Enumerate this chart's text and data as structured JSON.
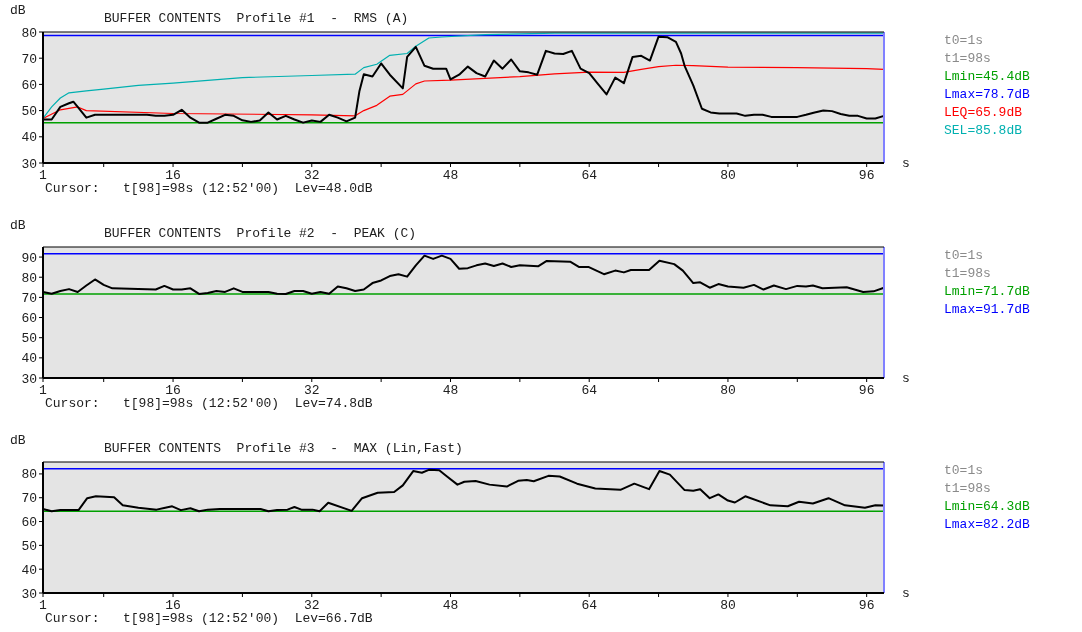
{
  "chart_data": [
    {
      "type": "line",
      "title": "BUFFER CONTENTS  Profile #1  -  RMS (A)",
      "xlabel": "s",
      "ylabel": "dB",
      "xlim": [
        1,
        98
      ],
      "ylim": [
        30,
        80
      ],
      "xticks": [
        1,
        {
          "value": 8,
          "label": null
        },
        16,
        {
          "value": 24,
          "label": null
        },
        32,
        {
          "value": 40,
          "label": null
        },
        48,
        {
          "value": 56,
          "label": null
        },
        64,
        {
          "value": 72,
          "label": null
        },
        80,
        {
          "value": 88,
          "label": null
        },
        96
      ],
      "yticks": [
        30,
        40,
        50,
        60,
        70,
        80
      ],
      "grid": false,
      "legend": "right",
      "marker": "none",
      "line_style": "solid",
      "series": [
        {
          "color": "#ff0000",
          "name": "LEQ=65.9dB",
          "x": [
            1,
            3,
            5,
            6,
            16,
            32,
            37,
            38,
            39.5,
            41,
            42.5,
            44,
            45,
            48,
            56,
            60,
            64,
            68,
            70,
            72,
            74,
            76,
            80,
            88,
            96,
            98
          ],
          "values": [
            47,
            50.3,
            51.4,
            50,
            48.9,
            48.4,
            48,
            50,
            52,
            55.5,
            56.2,
            60.2,
            61.3,
            61.6,
            63,
            64,
            64.7,
            64.6,
            65.7,
            66.8,
            67.3,
            67.2,
            66.6,
            66.4,
            66,
            65.7
          ]
        },
        {
          "color": "#00b0b0",
          "name": "SEL=85.8dB",
          "x": [
            1,
            2,
            3,
            4,
            6,
            8,
            12,
            16,
            24,
            32,
            37,
            38,
            39.5,
            41,
            43,
            44,
            45.5,
            47,
            52,
            56,
            60,
            98
          ],
          "values": [
            47,
            51.4,
            54.8,
            56.8,
            57.5,
            58.2,
            59.6,
            60.5,
            62.6,
            63.4,
            63.9,
            66.4,
            67.7,
            71.1,
            71.8,
            74.6,
            77.7,
            78.1,
            79,
            79.3,
            79.6,
            79.6
          ]
        },
        {
          "color": "#000000",
          "x": [
            1,
            2,
            3,
            4,
            4.5,
            5,
            6,
            7,
            13,
            14,
            15,
            16,
            17,
            18,
            19,
            20,
            21,
            22,
            23,
            24,
            25,
            26,
            27,
            28,
            29,
            30,
            31,
            32,
            33,
            34,
            35,
            36,
            37,
            37.5,
            38,
            39,
            40,
            41,
            42.5,
            43,
            44,
            45,
            46,
            47.5,
            48,
            49,
            50,
            51,
            52,
            53,
            54,
            55,
            56,
            57,
            58,
            59,
            60,
            61,
            62,
            63,
            64,
            65,
            66,
            67,
            68,
            69,
            70,
            71,
            72,
            73,
            74,
            74.6,
            75,
            76,
            77,
            78,
            79,
            81,
            82,
            83,
            84,
            85,
            88,
            89,
            90,
            91,
            92,
            93,
            94,
            95,
            96,
            97,
            98
          ],
          "values": [
            46.6,
            46.6,
            51.4,
            52.8,
            53.4,
            51.4,
            47.3,
            48.4,
            48.4,
            48,
            48,
            48.4,
            50.3,
            47.3,
            45.4,
            45.4,
            46.9,
            48.4,
            48,
            46.3,
            45.7,
            46.2,
            49.3,
            46.6,
            48,
            46.6,
            45.4,
            46.2,
            45.7,
            48.4,
            47.3,
            45.9,
            47.3,
            57.5,
            63.9,
            63,
            68,
            63.7,
            58.5,
            70.5,
            74.3,
            67.1,
            66,
            66,
            61.9,
            63.7,
            66.8,
            64.3,
            63,
            69.1,
            66,
            69.5,
            65,
            64.6,
            63.7,
            72.8,
            71.8,
            71.6,
            72.8,
            66,
            64.3,
            60.2,
            56.2,
            62.6,
            60.5,
            70.5,
            70.9,
            69.1,
            78.2,
            78,
            76.2,
            71.8,
            67.1,
            59.6,
            50.7,
            49.3,
            48.9,
            48.9,
            48,
            48.4,
            48.4,
            47.6,
            47.6,
            48.4,
            49.3,
            50,
            49.8,
            48.7,
            48,
            48,
            47,
            47,
            48
          ]
        }
      ],
      "ref_lines": [
        {
          "axis": "y",
          "value": 45.4,
          "label": "Lmin=45.4dB",
          "color": "#00a000"
        },
        {
          "axis": "y",
          "value": 78.7,
          "label": "Lmax=78.7dB",
          "color": "#0000ff"
        },
        {
          "axis": "x",
          "value": 98,
          "color": "#8080ff"
        }
      ],
      "annotations": [
        "t0=1s",
        "t1=98s",
        "Cursor:   t[98]=98s (12:52'00)  Lev=48.0dB"
      ]
    },
    {
      "type": "line",
      "title": "BUFFER CONTENTS  Profile #2  -  PEAK (C)",
      "xlabel": "s",
      "ylabel": "dB",
      "xlim": [
        1,
        98
      ],
      "ylim": [
        30,
        95
      ],
      "xticks": [
        1,
        {
          "value": 8,
          "label": null
        },
        16,
        {
          "value": 24,
          "label": null
        },
        32,
        {
          "value": 40,
          "label": null
        },
        48,
        {
          "value": 56,
          "label": null
        },
        64,
        {
          "value": 72,
          "label": null
        },
        80,
        {
          "value": 88,
          "label": null
        },
        96
      ],
      "yticks": [
        30,
        40,
        50,
        60,
        70,
        80,
        90
      ],
      "grid": false,
      "legend": "right",
      "marker": "none",
      "line_style": "solid",
      "series": [
        {
          "color": "#000000",
          "x": [
            1,
            2,
            3,
            4,
            5,
            6,
            7,
            8,
            9,
            14,
            15,
            16,
            17,
            18,
            19,
            20,
            21,
            22,
            23,
            24,
            27,
            28,
            29,
            30,
            31,
            32,
            33,
            34,
            35,
            36,
            37,
            38,
            39,
            40,
            41,
            42,
            43,
            44,
            45,
            46,
            47,
            48,
            49,
            50,
            51,
            52,
            53,
            54,
            55,
            56,
            58.1,
            59.1,
            61.8,
            62.8,
            63.9,
            65.7,
            67,
            68,
            68.8,
            70.9,
            72.1,
            73.8,
            74.8,
            76,
            76.8,
            77.9,
            78.9,
            80,
            81.8,
            83,
            84.1,
            85.3,
            86.7,
            88,
            89,
            89.8,
            90.9,
            93.7,
            95.6,
            96.8,
            98
          ],
          "values": [
            72.7,
            71.8,
            73.2,
            74.1,
            72.7,
            75.9,
            78.9,
            76.2,
            74.5,
            73.9,
            75.7,
            73.9,
            73.9,
            74.5,
            71.7,
            72.2,
            73.2,
            72.7,
            74.5,
            72.7,
            72.7,
            71.8,
            71.7,
            73.2,
            73.2,
            71.8,
            72.7,
            71.8,
            75.4,
            74.5,
            73.2,
            73.9,
            77.1,
            78.4,
            80.6,
            81.5,
            80.3,
            85.9,
            90.7,
            89.1,
            90.7,
            89.1,
            84.2,
            84.5,
            85.9,
            86.8,
            85.6,
            86.8,
            85.1,
            85.9,
            85.4,
            88.1,
            87.7,
            85.1,
            85.1,
            81.5,
            83.3,
            82.4,
            83.6,
            83.6,
            88.2,
            86.5,
            83.3,
            77.1,
            77.5,
            74.8,
            76.6,
            75.4,
            74.8,
            76.2,
            73.9,
            75.9,
            74.1,
            75.7,
            75.4,
            75.9,
            74.5,
            75,
            72.7,
            73,
            74.8
          ]
        }
      ],
      "ref_lines": [
        {
          "axis": "y",
          "value": 71.7,
          "label": "Lmin=71.7dB",
          "color": "#00a000"
        },
        {
          "axis": "y",
          "value": 91.7,
          "label": "Lmax=91.7dB",
          "color": "#0000ff"
        },
        {
          "axis": "x",
          "value": 98,
          "color": "#8080ff"
        }
      ],
      "annotations": [
        "t0=1s",
        "t1=98s",
        "Cursor:   t[98]=98s (12:52'00)  Lev=74.8dB"
      ]
    },
    {
      "type": "line",
      "title": "BUFFER CONTENTS  Profile #3  -  MAX (Lin,Fast)",
      "xlabel": "s",
      "ylabel": "dB",
      "xlim": [
        1,
        98
      ],
      "ylim": [
        30,
        85
      ],
      "xticks": [
        1,
        {
          "value": 8,
          "label": null
        },
        16,
        {
          "value": 24,
          "label": null
        },
        32,
        {
          "value": 40,
          "label": null
        },
        48,
        {
          "value": 56,
          "label": null
        },
        64,
        {
          "value": 72,
          "label": null
        },
        80,
        {
          "value": 88,
          "label": null
        },
        96
      ],
      "yticks": [
        30,
        40,
        50,
        60,
        70,
        80
      ],
      "grid": false,
      "legend": "right",
      "marker": "none",
      "line_style": "solid",
      "series": [
        {
          "color": "#000000",
          "x": [
            1,
            2,
            3,
            5.1,
            6.1,
            7.1,
            9.2,
            10.2,
            12,
            14.1,
            15.1,
            15.9,
            16.9,
            18,
            19,
            20,
            21.4,
            26.1,
            27,
            28,
            29.2,
            30,
            30.8,
            32.1,
            32.9,
            33.9,
            36.6,
            37.8,
            39.6,
            41.5,
            42.5,
            43.7,
            44.7,
            45.5,
            46.7,
            47.6,
            48.8,
            49.6,
            50.9,
            52.5,
            54.5,
            55.8,
            56.8,
            57.6,
            59.3,
            60.6,
            62.6,
            64.7,
            67.6,
            69.2,
            70.9,
            72.1,
            73.3,
            75,
            76,
            76.8,
            77.9,
            78.9,
            80,
            80.8,
            82,
            84.9,
            86.9,
            88.2,
            89.8,
            91.6,
            93.5,
            95.8,
            97,
            98
          ],
          "values": [
            65.3,
            64.3,
            64.8,
            64.8,
            69.8,
            70.6,
            70.2,
            66.8,
            65.8,
            65,
            65.8,
            66.4,
            64.8,
            65.6,
            64.3,
            65,
            65.3,
            65.3,
            64.3,
            64.8,
            65,
            66.1,
            65,
            65,
            64.3,
            67.9,
            64.5,
            69.8,
            72.1,
            72.4,
            75.2,
            81.2,
            80.5,
            81.7,
            81.5,
            78.9,
            75.5,
            76.7,
            77,
            75.5,
            74.7,
            77.1,
            77.4,
            76.9,
            79.2,
            78.9,
            75.9,
            73.9,
            73.3,
            75.9,
            73.6,
            81.2,
            79.7,
            73.2,
            72.9,
            73.6,
            69.8,
            71.4,
            68.8,
            68,
            70.6,
            66.8,
            66.4,
            68.3,
            67.6,
            69.8,
            66.8,
            65.8,
            66.8,
            66.7
          ]
        }
      ],
      "ref_lines": [
        {
          "axis": "y",
          "value": 64.3,
          "label": "Lmin=64.3dB",
          "color": "#00a000"
        },
        {
          "axis": "y",
          "value": 82.2,
          "label": "Lmax=82.2dB",
          "color": "#0000ff"
        },
        {
          "axis": "x",
          "value": 98,
          "color": "#8080ff"
        }
      ],
      "annotations": [
        "t0=1s",
        "t1=98s",
        "Cursor:   t[98]=98s (12:52'00)  Lev=66.7dB"
      ]
    }
  ]
}
